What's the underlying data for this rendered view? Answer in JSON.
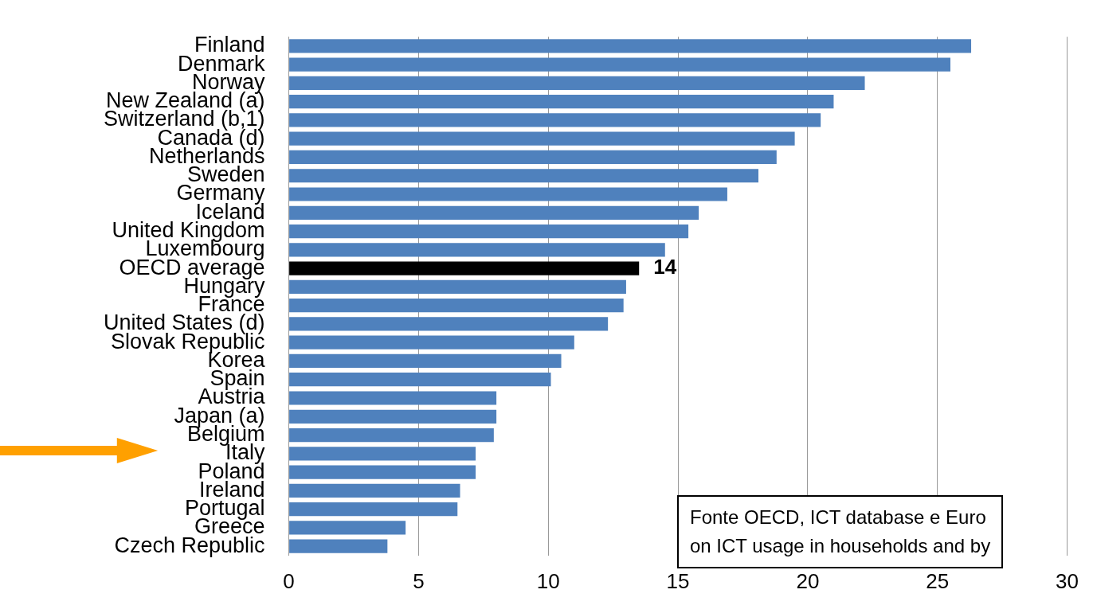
{
  "chart_data": {
    "type": "bar",
    "orientation": "horizontal",
    "categories": [
      "Finland",
      "Denmark",
      "Norway",
      "New Zealand (a)",
      "Switzerland (b,1)",
      "Canada (d)",
      "Netherlands",
      "Sweden",
      "Germany",
      "Iceland",
      "United Kingdom",
      "Luxembourg",
      "OECD average",
      "Hungary",
      "France",
      "United States (d)",
      "Slovak Republic",
      "Korea",
      "Spain",
      "Austria",
      "Japan (a)",
      "Belgium",
      "Italy",
      "Poland",
      "Ireland",
      "Portugal",
      "Greece",
      "Czech Republic"
    ],
    "values": [
      26.3,
      25.5,
      22.2,
      21.0,
      20.5,
      19.5,
      18.8,
      18.1,
      16.9,
      15.8,
      15.4,
      14.5,
      13.5,
      13.0,
      12.9,
      12.3,
      11.0,
      10.5,
      10.1,
      8.0,
      8.0,
      7.9,
      7.2,
      7.2,
      6.6,
      6.5,
      4.5,
      3.8
    ],
    "colors": [
      "#4f81bd",
      "#4f81bd",
      "#4f81bd",
      "#4f81bd",
      "#4f81bd",
      "#4f81bd",
      "#4f81bd",
      "#4f81bd",
      "#4f81bd",
      "#4f81bd",
      "#4f81bd",
      "#4f81bd",
      "#000000",
      "#4f81bd",
      "#4f81bd",
      "#4f81bd",
      "#4f81bd",
      "#4f81bd",
      "#4f81bd",
      "#4f81bd",
      "#4f81bd",
      "#4f81bd",
      "#4f81bd",
      "#4f81bd",
      "#4f81bd",
      "#4f81bd",
      "#4f81bd",
      "#4f81bd"
    ],
    "value_labels": [
      null,
      null,
      null,
      null,
      null,
      null,
      null,
      null,
      null,
      null,
      null,
      null,
      "14",
      null,
      null,
      null,
      null,
      null,
      null,
      null,
      null,
      null,
      null,
      null,
      null,
      null,
      null,
      null
    ],
    "xlim": [
      0,
      30
    ],
    "xticks": [
      0,
      5,
      10,
      15,
      20,
      25,
      30
    ],
    "grid": "x",
    "legend": false,
    "annotations": [
      "Fonte OECD, ICT database  e  Euro",
      "on ICT usage in households and by"
    ]
  }
}
